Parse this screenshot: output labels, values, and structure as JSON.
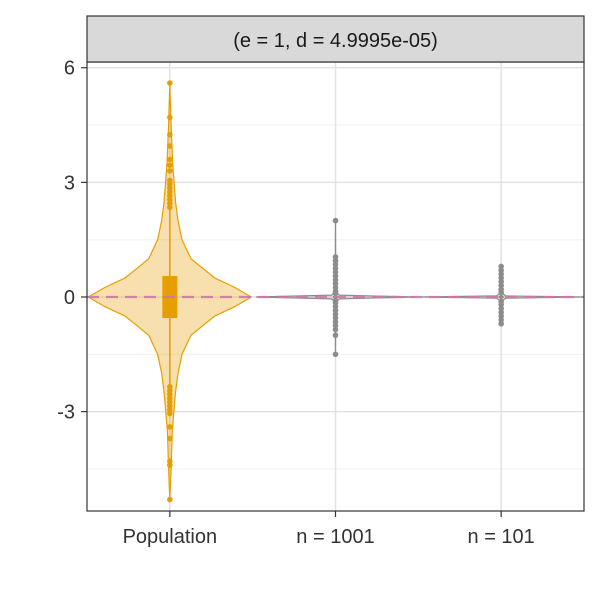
{
  "chart_data": {
    "type": "violin",
    "facet_label": "(e = 1, d = 4.9995e-05)",
    "categories": [
      "Population",
      "n = 1001",
      "n = 101"
    ],
    "y_ticks": [
      {
        "value": -3,
        "label": "-3"
      },
      {
        "value": 0,
        "label": "0"
      },
      {
        "value": 3,
        "label": "3"
      },
      {
        "value": 6,
        "label": "6"
      }
    ],
    "ylim": [
      -5.6,
      6.15
    ],
    "grid": true,
    "reference_line": {
      "y": 0,
      "style": "dashed",
      "color": "#cc79a7"
    },
    "colors": {
      "population": "#e69f00",
      "sample": "#8c8c8c"
    },
    "series": [
      {
        "category": "Population",
        "median": 0.0,
        "q1": -0.55,
        "q3": 0.55,
        "whisker_low": -2.3,
        "whisker_high": 2.3,
        "max_density_halfwidth": 1.85,
        "density": [
          [
            -5.3,
            0.0
          ],
          [
            -4.5,
            0.015
          ],
          [
            -3.5,
            0.03
          ],
          [
            -2.5,
            0.07
          ],
          [
            -2.0,
            0.1
          ],
          [
            -1.5,
            0.15
          ],
          [
            -1.0,
            0.26
          ],
          [
            -0.5,
            0.55
          ],
          [
            -0.25,
            0.8
          ],
          [
            0.0,
            1.0
          ],
          [
            0.25,
            0.8
          ],
          [
            0.5,
            0.55
          ],
          [
            1.0,
            0.26
          ],
          [
            1.5,
            0.15
          ],
          [
            2.0,
            0.1
          ],
          [
            2.5,
            0.07
          ],
          [
            3.5,
            0.035
          ],
          [
            4.5,
            0.015
          ],
          [
            5.6,
            0.0
          ]
        ],
        "outliers": [
          5.6,
          4.7,
          4.25,
          3.95,
          3.6,
          3.45,
          3.3,
          3.05,
          2.95,
          2.85,
          2.75,
          2.65,
          2.55,
          2.45,
          2.35,
          -2.35,
          -2.45,
          -2.55,
          -2.65,
          -2.75,
          -2.85,
          -2.95,
          -3.05,
          -3.4,
          -3.7,
          -4.3,
          -4.4,
          -5.3
        ]
      },
      {
        "category": "n = 1001",
        "median": 0.0,
        "q1": -0.03,
        "q3": 0.03,
        "whisker_low": -0.07,
        "whisker_high": 0.07,
        "max_density_halfwidth": 1.8,
        "density": [
          [
            -1.5,
            0.0
          ],
          [
            -0.5,
            0.004
          ],
          [
            -0.2,
            0.008
          ],
          [
            -0.1,
            0.02
          ],
          [
            -0.05,
            0.05
          ],
          [
            0.0,
            1.0
          ],
          [
            0.05,
            0.05
          ],
          [
            0.1,
            0.02
          ],
          [
            0.2,
            0.008
          ],
          [
            0.5,
            0.004
          ],
          [
            2.0,
            0.0
          ]
        ],
        "outliers": [
          2.0,
          1.05,
          0.95,
          0.85,
          0.75,
          0.65,
          0.55,
          0.45,
          0.35,
          0.25,
          0.15,
          0.1,
          -0.1,
          -0.15,
          -0.25,
          -0.35,
          -0.45,
          -0.55,
          -0.65,
          -0.75,
          -0.85,
          -1.0,
          -1.5
        ]
      },
      {
        "category": "n = 101",
        "median": 0.0,
        "q1": -0.03,
        "q3": 0.03,
        "whisker_low": -0.07,
        "whisker_high": 0.07,
        "max_density_halfwidth": 1.8,
        "density": [
          [
            -0.75,
            0.0
          ],
          [
            -0.3,
            0.006
          ],
          [
            -0.15,
            0.012
          ],
          [
            -0.07,
            0.03
          ],
          [
            -0.03,
            0.06
          ],
          [
            0.0,
            1.0
          ],
          [
            0.03,
            0.06
          ],
          [
            0.07,
            0.03
          ],
          [
            0.15,
            0.012
          ],
          [
            0.3,
            0.006
          ],
          [
            0.8,
            0.0
          ]
        ],
        "outliers": [
          0.8,
          0.7,
          0.6,
          0.5,
          0.4,
          0.3,
          0.2,
          0.12,
          -0.12,
          -0.2,
          -0.3,
          -0.4,
          -0.5,
          -0.6,
          -0.7
        ]
      }
    ]
  }
}
